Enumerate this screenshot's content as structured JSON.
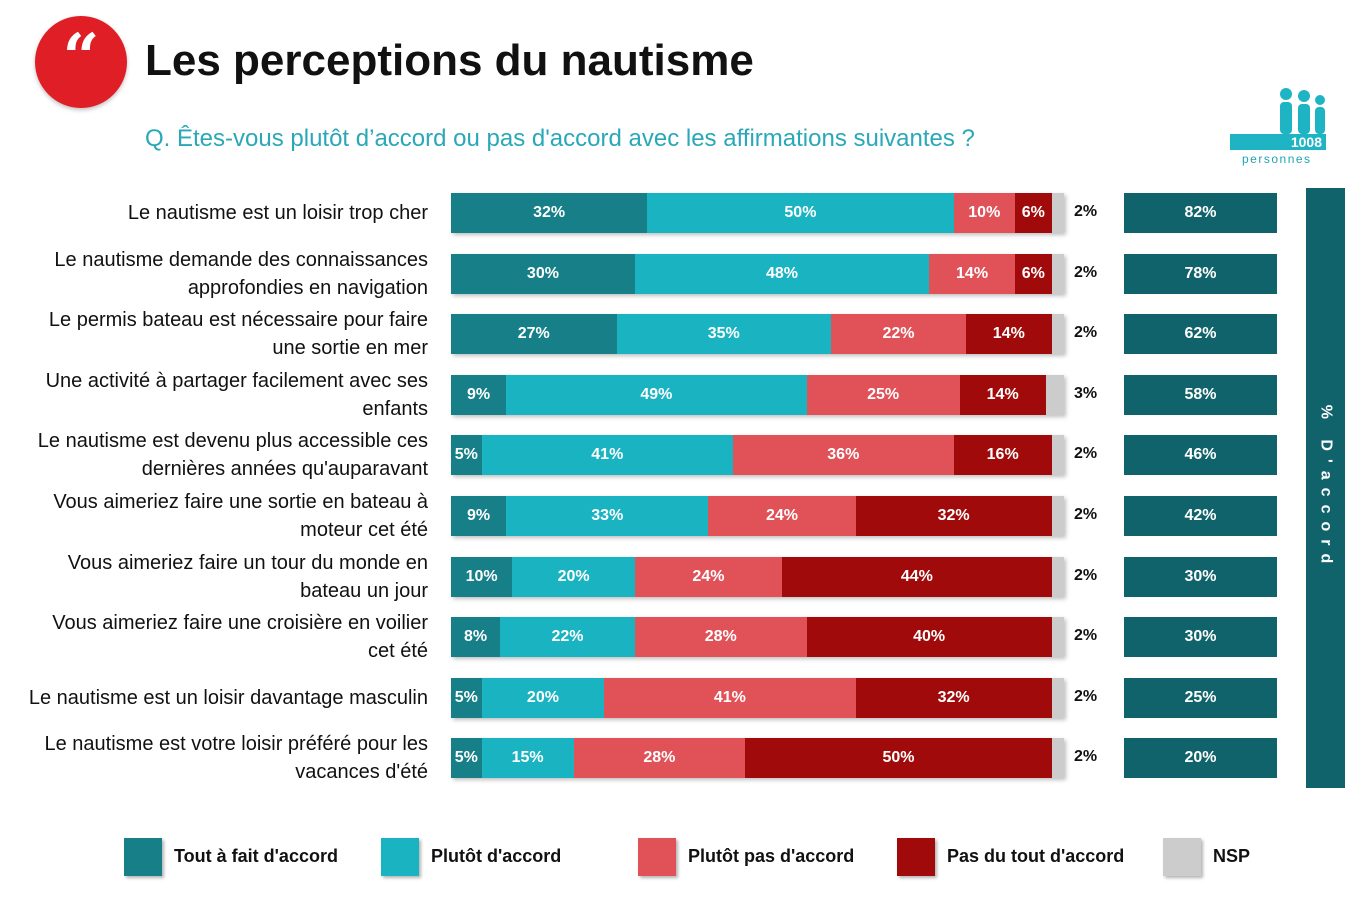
{
  "header": {
    "title": "Les perceptions du nautisme",
    "question": "Q. Êtes-vous plutôt d’accord ou pas d'accord avec les affirmations suivantes ?",
    "quote_glyph": "“",
    "sample_count": "1008",
    "sample_label": "personnes"
  },
  "side_label": "% D'accord",
  "colors": {
    "tout_a_fait": "#167f88",
    "plutot": "#1ab3c1",
    "plutot_pas": "#e05258",
    "pas_du_tout": "#a00a0a",
    "nsp": "#cccccc",
    "agree_box": "#11636b",
    "logo": "#e01e25"
  },
  "legend": [
    {
      "label": "Tout à fait d'accord",
      "color": "#167f88"
    },
    {
      "label": "Plutôt d'accord",
      "color": "#1ab3c1"
    },
    {
      "label": "Plutôt pas d'accord",
      "color": "#e05258"
    },
    {
      "label": "Pas du tout d'accord",
      "color": "#a00a0a"
    },
    {
      "label": "NSP",
      "color": "#cccccc"
    }
  ],
  "chart_data": {
    "type": "bar",
    "orientation": "horizontal",
    "stacked": true,
    "unit": "%",
    "categories": [
      [
        "Le nautisme est un loisir trop cher"
      ],
      [
        "Le nautisme demande des connaissances",
        "approfondies en navigation"
      ],
      [
        "Le permis bateau est nécessaire pour faire",
        "une sortie en mer"
      ],
      [
        "Une activité à partager facilement avec ses",
        "enfants"
      ],
      [
        "Le nautisme est devenu plus accessible ces",
        "dernières années qu'auparavant"
      ],
      [
        "Vous aimeriez faire une sortie en bateau à",
        "moteur cet été"
      ],
      [
        "Vous aimeriez faire un tour du monde en",
        "bateau un jour"
      ],
      [
        "Vous aimeriez faire une croisière en voilier",
        "cet été"
      ],
      [
        "Le nautisme est un loisir davantage masculin"
      ],
      [
        "Le nautisme est votre loisir préféré pour les",
        "vacances d'été"
      ]
    ],
    "series": [
      {
        "name": "Tout à fait d'accord",
        "values": [
          32,
          30,
          27,
          9,
          5,
          9,
          10,
          8,
          5,
          5
        ]
      },
      {
        "name": "Plutôt d'accord",
        "values": [
          50,
          48,
          35,
          49,
          41,
          33,
          20,
          22,
          20,
          15
        ]
      },
      {
        "name": "Plutôt pas d'accord",
        "values": [
          10,
          14,
          22,
          25,
          36,
          24,
          24,
          28,
          41,
          28
        ]
      },
      {
        "name": "Pas du tout d'accord",
        "values": [
          6,
          6,
          14,
          14,
          16,
          32,
          44,
          40,
          32,
          50
        ]
      },
      {
        "name": "NSP",
        "values": [
          2,
          2,
          2,
          3,
          2,
          2,
          2,
          2,
          2,
          2
        ]
      }
    ],
    "pct_accord": [
      82,
      78,
      62,
      58,
      46,
      42,
      30,
      30,
      25,
      20
    ]
  }
}
